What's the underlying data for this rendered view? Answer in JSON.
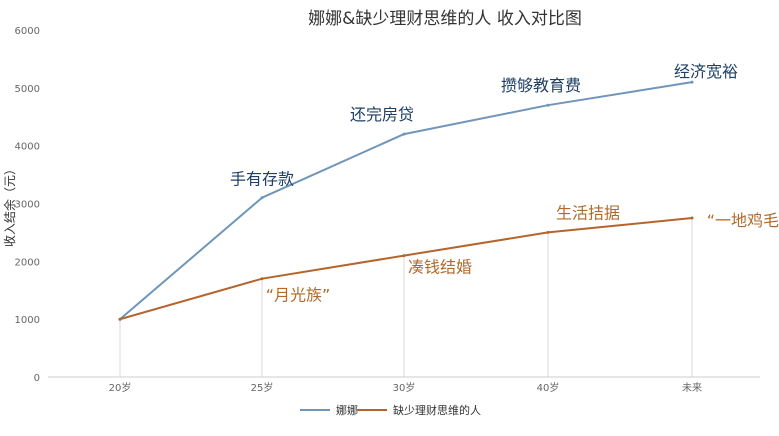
{
  "chart_data": {
    "type": "line",
    "title": "娜娜&缺少理财思维的人  收入对比图",
    "ylabel": "收入结余（元）",
    "xlabel": "",
    "ylim": [
      0,
      6000
    ],
    "yticks": [
      0,
      1000,
      2000,
      3000,
      4000,
      5000,
      6000
    ],
    "categories": [
      "20岁",
      "25岁",
      "30岁",
      "40岁",
      "未来"
    ],
    "grid": "vertical-lines-at-categories",
    "legend_position": "bottom-center",
    "series": [
      {
        "name": "娜娜",
        "color": "#6f96ba",
        "values": [
          1000,
          3100,
          4200,
          4700,
          5100
        ],
        "annotations": [
          "",
          "手有存款",
          "还完房贷",
          "攒够教育费",
          "经济宽裕"
        ]
      },
      {
        "name": "缺少理财思维的人",
        "color": "#b5652c",
        "values": [
          1000,
          1700,
          2100,
          2500,
          2750
        ],
        "annotations": [
          "",
          "“月光族”",
          "凑钱结婚",
          "生活拮据",
          "“一地鸡毛”"
        ]
      }
    ]
  }
}
